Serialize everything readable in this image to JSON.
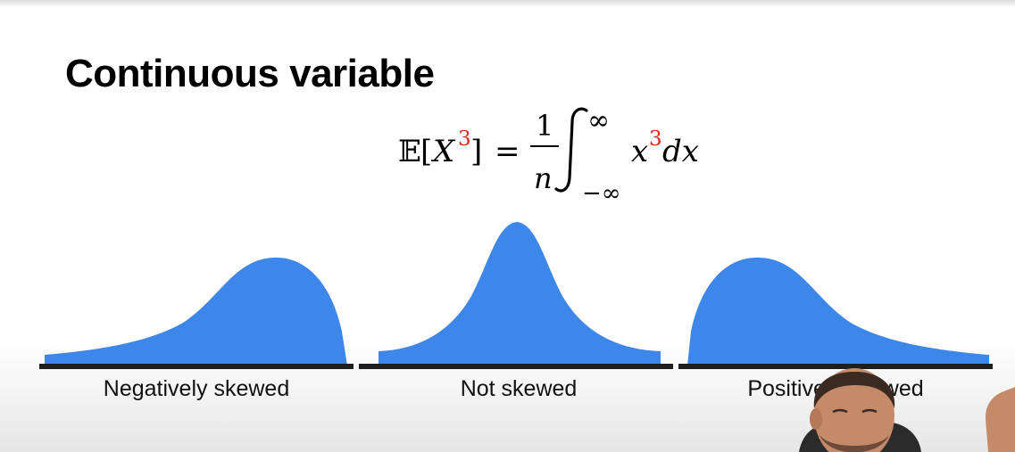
{
  "slide": {
    "title": "Continuous variable"
  },
  "formula": {
    "lhs_bb": "𝔼",
    "lhs_open": "[",
    "lhs_var": "X",
    "lhs_power": "3",
    "lhs_close": "]",
    "equals": "=",
    "numerator": "1",
    "denominator": "n",
    "integral": "∫",
    "upper_limit": "∞",
    "lower_limit": "−∞",
    "integrand_var": "x",
    "integrand_power": "3",
    "differential": "dx"
  },
  "distributions": [
    {
      "caption": "Negatively skewed"
    },
    {
      "caption": "Not skewed"
    },
    {
      "caption": "Positively skewed"
    }
  ],
  "colors": {
    "curve_fill": "#3d87eb",
    "baseline": "#1e1e1e",
    "power_red": "#d62b1f"
  },
  "icons": {
    "presenter": "presenter-webcam-icon"
  }
}
